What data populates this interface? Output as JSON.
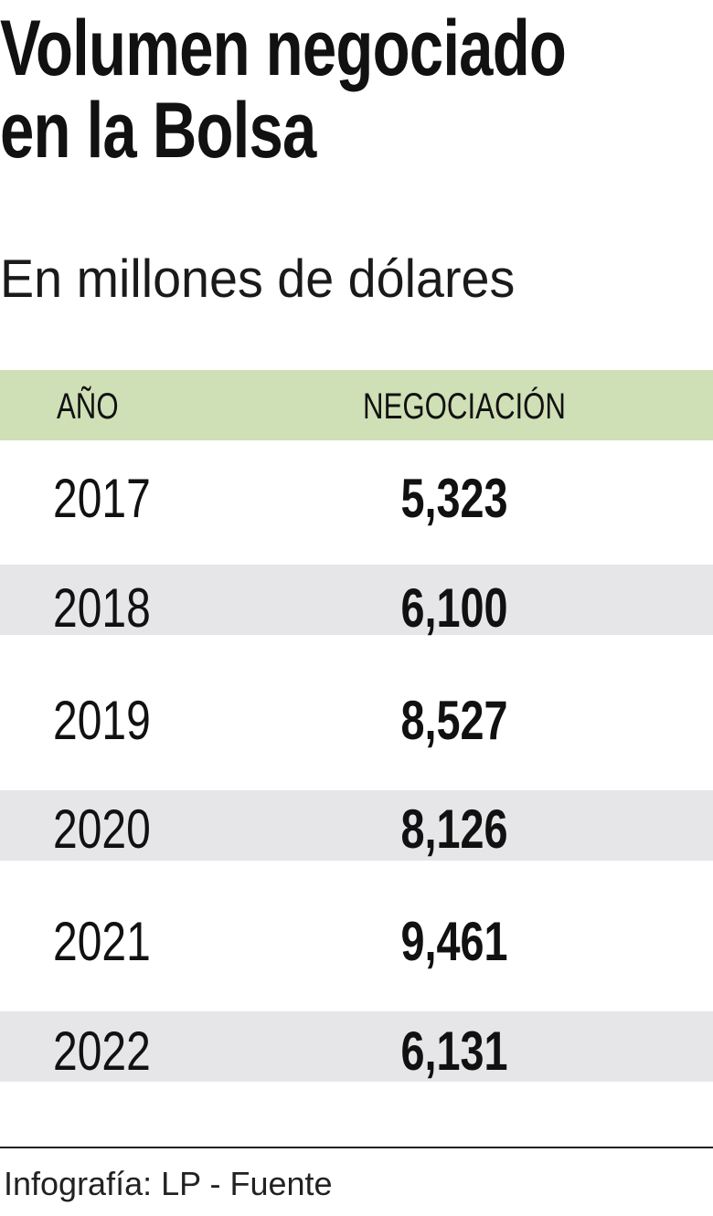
{
  "title_lines": [
    "Volumen negociado",
    "en la Bolsa"
  ],
  "subtitle": "En millones de dólares",
  "footer": "Infografía: LP - Fuente",
  "colors": {
    "header_bg": "#cfdfb6",
    "stripe_bg": "#e6e6e8"
  },
  "chart_data": {
    "type": "table",
    "title": "Volumen negociado en la Bolsa",
    "subtitle": "En millones de dólares",
    "columns": [
      "AÑO",
      "NEGOCIACIÓN"
    ],
    "rows": [
      {
        "year": "2017",
        "value": "5,323"
      },
      {
        "year": "2018",
        "value": "6,100"
      },
      {
        "year": "2019",
        "value": "8,527"
      },
      {
        "year": "2020",
        "value": "8,126"
      },
      {
        "year": "2021",
        "value": "9,461"
      },
      {
        "year": "2022",
        "value": "6,131"
      }
    ]
  }
}
